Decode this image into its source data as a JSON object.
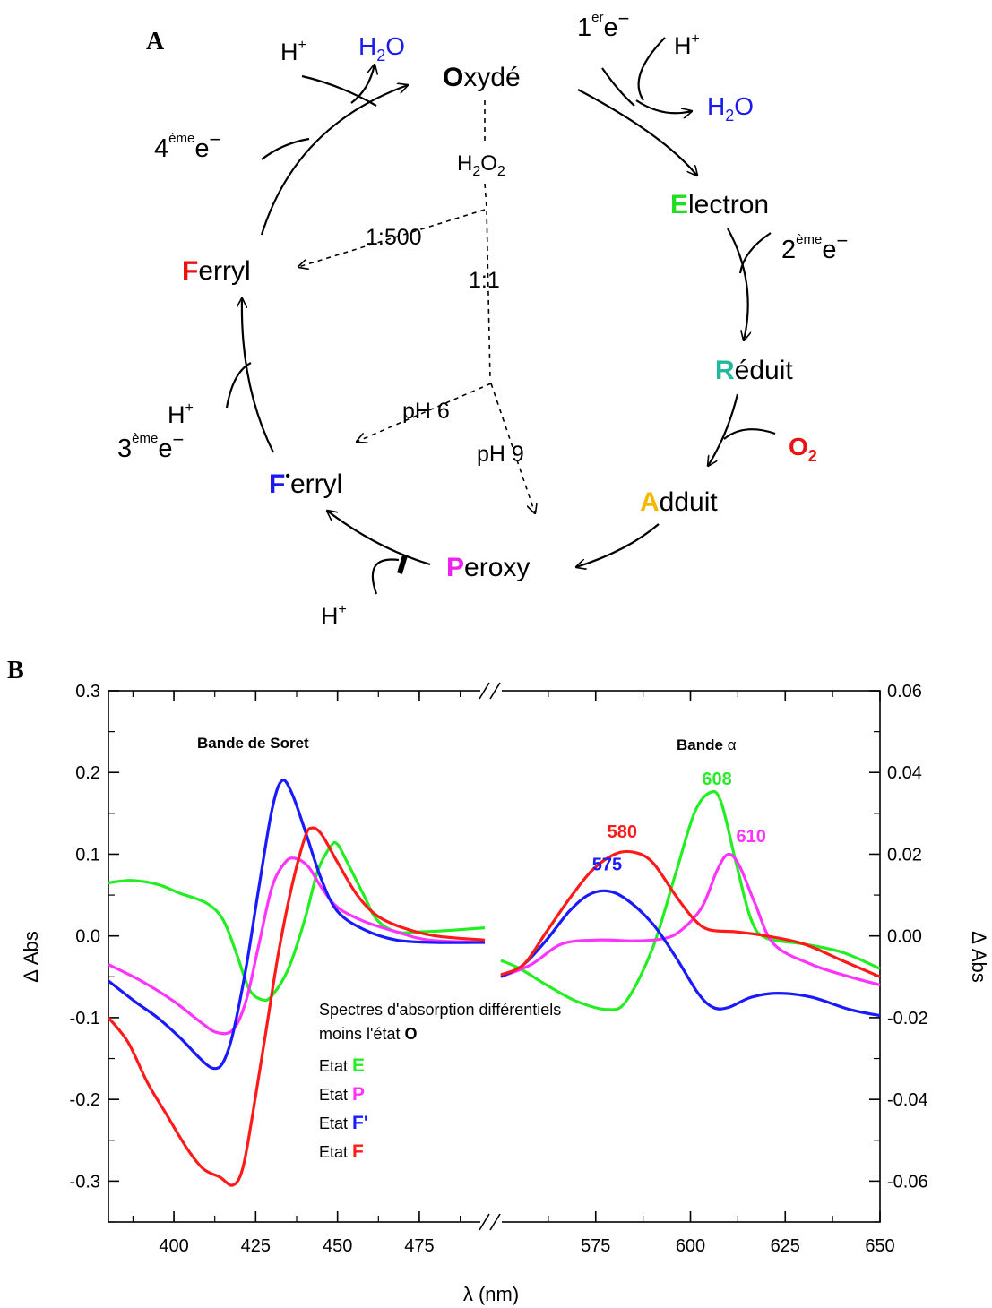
{
  "panel_a": {
    "label": "A",
    "states": {
      "O": {
        "letter": "O",
        "rest": "xydé",
        "letter_color": "#000000"
      },
      "E": {
        "letter": "E",
        "rest": "lectron",
        "letter_color": "#22dd22"
      },
      "R": {
        "letter": "R",
        "rest": "éduit",
        "letter_color": "#22b89a"
      },
      "A": {
        "letter": "A",
        "rest": "dduit",
        "letter_color": "#f5b800"
      },
      "P": {
        "letter": "P",
        "rest": "eroxy",
        "letter_color": "#ee22ee"
      },
      "Fp": {
        "letter": "F",
        "mark": "•",
        "rest": "erryl",
        "letter_color": "#1a1aee"
      },
      "F": {
        "letter": "F",
        "rest": "erryl",
        "letter_color": "#ee1111"
      }
    },
    "labels": {
      "h_plus": "H",
      "plus": "+",
      "h2o_h": "H",
      "h2o_sub": "2",
      "h2o_o": "O",
      "h2o_color": "#1a1aee",
      "o2_o": "O",
      "o2_sub": "2",
      "o2_color": "#ee1111",
      "e1_num": "1",
      "e1_sup": "er",
      "e2_num": "2",
      "e3_num": "3",
      "e4_num": "4",
      "e_sup": "ème",
      "e_sym": "e",
      "e_minus": "−",
      "h2o2_h": "H",
      "h2o2_sub1": "2",
      "h2o2_o": "O",
      "h2o2_sub2": "2",
      "ratio_500": "1:500",
      "ratio_1": "1:1",
      "ph6": "pH 6",
      "ph9": "pH 9"
    }
  },
  "chart_data": {
    "type": "line",
    "panel_label": "B",
    "xlabel": "λ (nm)",
    "ylabel_left": "Δ Abs",
    "ylabel_right": "Δ Abs",
    "x_break": true,
    "segments": [
      {
        "name": "Bande de Soret",
        "xlim": [
          380,
          495
        ],
        "ylim": [
          -0.35,
          0.3
        ],
        "axis": "left"
      },
      {
        "name": "Bande α",
        "xlim": [
          550,
          650
        ],
        "ylim": [
          -0.07,
          0.06
        ],
        "axis": "right"
      }
    ],
    "x_ticks_left": [
      "400",
      "425",
      "450",
      "475"
    ],
    "x_ticks_right": [
      "575",
      "600",
      "625",
      "650"
    ],
    "y_ticks_left": [
      "0.3",
      "0.2",
      "0.1",
      "0.0",
      "-0.1",
      "-0.2",
      "-0.3"
    ],
    "y_ticks_right": [
      "0.06",
      "0.04",
      "0.02",
      "0.00",
      "-0.02",
      "-0.04",
      "-0.06"
    ],
    "band_titles": {
      "soret": "Bande de Soret",
      "alpha_prefix": "Bande ",
      "alpha_symbol": "α"
    },
    "legend": {
      "title_line1": "Spectres d'absorption différentiels",
      "title_line2": "moins l'état ",
      "title_state": "O",
      "prefix": "Etat",
      "entries": [
        {
          "state": "E",
          "color": "#22ee22"
        },
        {
          "state": "P",
          "color": "#ff33ff"
        },
        {
          "state": "F'",
          "color": "#1a1aff"
        },
        {
          "state": "F",
          "color": "#ff1a1a"
        }
      ]
    },
    "peak_labels": [
      {
        "text": "608",
        "x": 607,
        "y": 0.037,
        "color": "#22ee22"
      },
      {
        "text": "580",
        "x": 582,
        "y": 0.024,
        "color": "#ff1a1a"
      },
      {
        "text": "575",
        "x": 578,
        "y": 0.016,
        "color": "#1a1aff"
      },
      {
        "text": "610",
        "x": 616,
        "y": 0.023,
        "color": "#ff33ff"
      }
    ],
    "series": [
      {
        "name": "E",
        "color": "#22ee22",
        "soret": [
          [
            380,
            0.065
          ],
          [
            387,
            0.068
          ],
          [
            395,
            0.063
          ],
          [
            402,
            0.052
          ],
          [
            410,
            0.04
          ],
          [
            415,
            0.02
          ],
          [
            419,
            -0.02
          ],
          [
            423,
            -0.065
          ],
          [
            427,
            -0.078
          ],
          [
            430,
            -0.073
          ],
          [
            435,
            -0.04
          ],
          [
            440,
            0.02
          ],
          [
            444,
            0.08
          ],
          [
            448,
            0.11
          ],
          [
            450,
            0.112
          ],
          [
            453,
            0.09
          ],
          [
            458,
            0.05
          ],
          [
            462,
            0.02
          ],
          [
            468,
            0.005
          ],
          [
            475,
            0.005
          ],
          [
            485,
            0.007
          ],
          [
            495,
            0.01
          ]
        ],
        "alpha": [
          [
            550,
            -0.006
          ],
          [
            555,
            -0.008
          ],
          [
            562,
            -0.012
          ],
          [
            570,
            -0.016
          ],
          [
            578,
            -0.018
          ],
          [
            583,
            -0.016
          ],
          [
            590,
            -0.003
          ],
          [
            596,
            0.015
          ],
          [
            601,
            0.03
          ],
          [
            605,
            0.035
          ],
          [
            608,
            0.033
          ],
          [
            612,
            0.018
          ],
          [
            616,
            0.004
          ],
          [
            620,
            -0.0005
          ],
          [
            630,
            -0.002
          ],
          [
            640,
            -0.004
          ],
          [
            650,
            -0.008
          ]
        ]
      },
      {
        "name": "P",
        "color": "#ff33ff",
        "soret": [
          [
            380,
            -0.035
          ],
          [
            390,
            -0.055
          ],
          [
            400,
            -0.08
          ],
          [
            408,
            -0.105
          ],
          [
            413,
            -0.118
          ],
          [
            418,
            -0.115
          ],
          [
            422,
            -0.08
          ],
          [
            426,
            -0.01
          ],
          [
            430,
            0.06
          ],
          [
            434,
            0.09
          ],
          [
            437,
            0.095
          ],
          [
            441,
            0.085
          ],
          [
            445,
            0.06
          ],
          [
            450,
            0.035
          ],
          [
            458,
            0.018
          ],
          [
            468,
            0.005
          ],
          [
            478,
            -0.005
          ],
          [
            495,
            -0.008
          ]
        ],
        "alpha": [
          [
            550,
            -0.01
          ],
          [
            558,
            -0.007
          ],
          [
            566,
            -0.002
          ],
          [
            575,
            -0.001
          ],
          [
            585,
            -0.0012
          ],
          [
            592,
            -0.0008
          ],
          [
            597,
            0.001
          ],
          [
            603,
            0.007
          ],
          [
            607,
            0.016
          ],
          [
            610,
            0.02
          ],
          [
            613,
            0.017
          ],
          [
            617,
            0.008
          ],
          [
            622,
            -0.002
          ],
          [
            632,
            -0.007
          ],
          [
            642,
            -0.01
          ],
          [
            650,
            -0.012
          ]
        ]
      },
      {
        "name": "F'",
        "color": "#1a1aff",
        "soret": [
          [
            380,
            -0.055
          ],
          [
            388,
            -0.08
          ],
          [
            395,
            -0.1
          ],
          [
            402,
            -0.125
          ],
          [
            408,
            -0.15
          ],
          [
            412,
            -0.162
          ],
          [
            415,
            -0.155
          ],
          [
            418,
            -0.12
          ],
          [
            422,
            -0.04
          ],
          [
            426,
            0.06
          ],
          [
            430,
            0.155
          ],
          [
            433,
            0.19
          ],
          [
            436,
            0.175
          ],
          [
            440,
            0.13
          ],
          [
            445,
            0.07
          ],
          [
            450,
            0.03
          ],
          [
            458,
            0.008
          ],
          [
            468,
            -0.005
          ],
          [
            480,
            -0.008
          ],
          [
            495,
            -0.008
          ]
        ],
        "alpha": [
          [
            550,
            -0.01
          ],
          [
            556,
            -0.007
          ],
          [
            562,
            -0.001
          ],
          [
            568,
            0.006
          ],
          [
            573,
            0.01
          ],
          [
            578,
            0.011
          ],
          [
            583,
            0.009
          ],
          [
            590,
            0.003
          ],
          [
            596,
            -0.005
          ],
          [
            602,
            -0.014
          ],
          [
            606,
            -0.0175
          ],
          [
            610,
            -0.0175
          ],
          [
            616,
            -0.015
          ],
          [
            623,
            -0.014
          ],
          [
            632,
            -0.015
          ],
          [
            642,
            -0.018
          ],
          [
            650,
            -0.0195
          ]
        ]
      },
      {
        "name": "F",
        "color": "#ff1a1a",
        "soret": [
          [
            380,
            -0.1
          ],
          [
            386,
            -0.13
          ],
          [
            392,
            -0.18
          ],
          [
            398,
            -0.22
          ],
          [
            404,
            -0.26
          ],
          [
            409,
            -0.285
          ],
          [
            414,
            -0.295
          ],
          [
            418,
            -0.305
          ],
          [
            421,
            -0.285
          ],
          [
            424,
            -0.22
          ],
          [
            428,
            -0.12
          ],
          [
            432,
            -0.02
          ],
          [
            436,
            0.06
          ],
          [
            440,
            0.12
          ],
          [
            442,
            0.132
          ],
          [
            445,
            0.125
          ],
          [
            450,
            0.09
          ],
          [
            456,
            0.05
          ],
          [
            462,
            0.025
          ],
          [
            470,
            0.01
          ],
          [
            480,
            0.0
          ],
          [
            495,
            -0.005
          ]
        ],
        "alpha": [
          [
            550,
            -0.0095
          ],
          [
            556,
            -0.007
          ],
          [
            562,
            0.001
          ],
          [
            568,
            0.009
          ],
          [
            574,
            0.016
          ],
          [
            580,
            0.02
          ],
          [
            585,
            0.0205
          ],
          [
            590,
            0.018
          ],
          [
            596,
            0.01
          ],
          [
            601,
            0.004
          ],
          [
            605,
            0.0015
          ],
          [
            612,
            0.001
          ],
          [
            620,
            0.0
          ],
          [
            630,
            -0.002
          ],
          [
            640,
            -0.006
          ],
          [
            650,
            -0.01
          ]
        ]
      }
    ]
  }
}
